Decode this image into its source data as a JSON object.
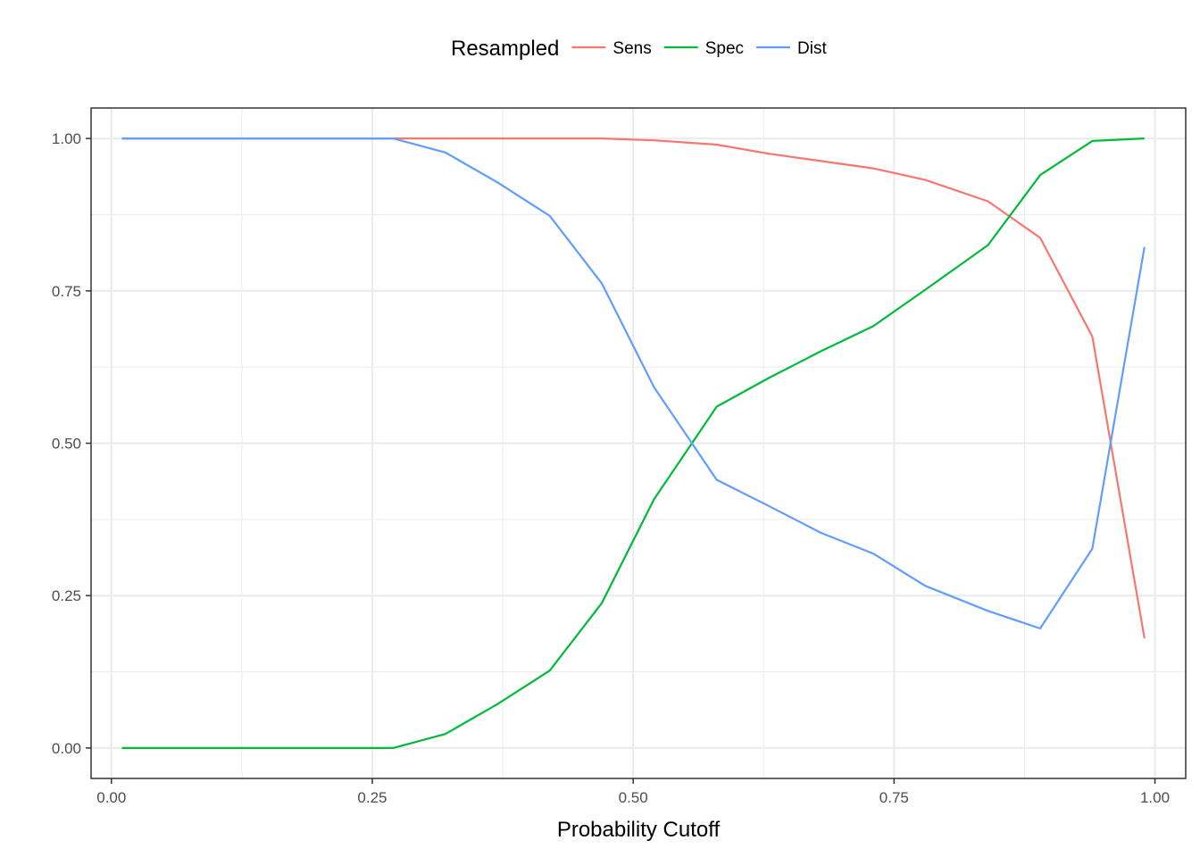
{
  "chart_data": {
    "type": "line",
    "title": "",
    "xlabel": "Probability Cutoff",
    "ylabel": "",
    "xlim": [
      -0.0195,
      1.0295
    ],
    "ylim": [
      -0.05,
      1.05
    ],
    "x_ticks": [
      0.0,
      0.25,
      0.5,
      0.75,
      1.0
    ],
    "x_tick_labels": [
      "0.00",
      "0.25",
      "0.50",
      "0.75",
      "1.00"
    ],
    "y_ticks": [
      0.0,
      0.25,
      0.5,
      0.75,
      1.0
    ],
    "y_tick_labels": [
      "0.00",
      "0.25",
      "0.50",
      "0.75",
      "1.00"
    ],
    "grid": true,
    "legend": {
      "title": "Resampled",
      "position": "top"
    },
    "x": [
      0.01,
      0.06,
      0.11,
      0.16,
      0.21,
      0.27,
      0.32,
      0.37,
      0.42,
      0.47,
      0.52,
      0.58,
      0.63,
      0.68,
      0.73,
      0.78,
      0.84,
      0.89,
      0.94,
      0.99
    ],
    "series": [
      {
        "name": "Sens",
        "color": "#F8766D",
        "values": [
          1.0,
          1.0,
          1.0,
          1.0,
          1.0,
          1.0,
          1.0,
          1.0,
          1.0,
          1.0,
          0.997,
          0.99,
          0.975,
          0.963,
          0.951,
          0.932,
          0.897,
          0.837,
          0.675,
          0.18
        ]
      },
      {
        "name": "Spec",
        "color": "#00BA38",
        "values": [
          0.0,
          0.0,
          0.0,
          0.0,
          0.0,
          0.0,
          0.023,
          0.072,
          0.127,
          0.238,
          0.408,
          0.56,
          0.607,
          0.651,
          0.692,
          0.752,
          0.825,
          0.94,
          0.996,
          1.0
        ]
      },
      {
        "name": "Dist",
        "color": "#619CFF",
        "values": [
          1.0,
          1.0,
          1.0,
          1.0,
          1.0,
          1.0,
          0.977,
          0.928,
          0.873,
          0.762,
          0.592,
          0.44,
          0.397,
          0.353,
          0.319,
          0.266,
          0.225,
          0.196,
          0.327,
          0.822
        ]
      }
    ]
  }
}
